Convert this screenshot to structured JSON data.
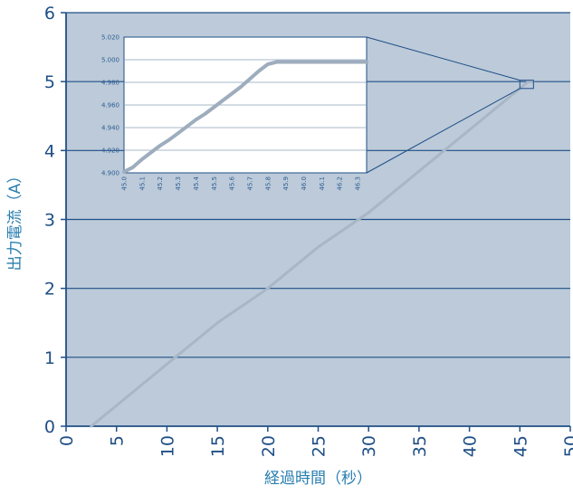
{
  "chart_data": [
    {
      "type": "line",
      "xlabel": "経過時間（秒）",
      "ylabel": "出力電流（A）",
      "xlim": [
        0,
        50
      ],
      "ylim": [
        0,
        6
      ],
      "x_ticks": [
        "0",
        "5",
        "10",
        "15",
        "20",
        "25",
        "30",
        "35",
        "40",
        "45",
        "50"
      ],
      "y_ticks": [
        "0",
        "1",
        "2",
        "3",
        "4",
        "5",
        "6"
      ],
      "grid": "horizontal",
      "series": [
        {
          "x": [
            2.5,
            5,
            10,
            15,
            20,
            25,
            30,
            35,
            40,
            45,
            45.8,
            46.3
          ],
          "y": [
            0.0,
            0.3,
            0.9,
            1.5,
            2.0,
            2.6,
            3.1,
            3.7,
            4.3,
            4.9,
            4.995,
            4.998
          ]
        }
      ]
    },
    {
      "type": "line",
      "role": "inset-zoom",
      "xlim": [
        45.0,
        46.35
      ],
      "ylim": [
        4.9,
        5.02
      ],
      "x_ticks": [
        "45.0",
        "45.1",
        "45.2",
        "45.3",
        "45.4",
        "45.5",
        "45.6",
        "45.7",
        "45.8",
        "45.9",
        "46.0",
        "46.1",
        "46.2",
        "46.3"
      ],
      "y_ticks": [
        "4.900",
        "4.920",
        "4.940",
        "4.960",
        "4.980",
        "5.000",
        "5.020"
      ],
      "grid": "horizontal",
      "series": [
        {
          "x": [
            45.0,
            45.05,
            45.1,
            45.15,
            45.2,
            45.25,
            45.3,
            45.35,
            45.4,
            45.45,
            45.5,
            45.55,
            45.6,
            45.65,
            45.7,
            45.75,
            45.8,
            45.85,
            45.9,
            46.0,
            46.1,
            46.2,
            46.3,
            46.35
          ],
          "y": [
            4.901,
            4.905,
            4.912,
            4.918,
            4.924,
            4.929,
            4.935,
            4.941,
            4.947,
            4.952,
            4.958,
            4.964,
            4.97,
            4.976,
            4.983,
            4.99,
            4.996,
            4.998,
            4.998,
            4.998,
            4.998,
            4.998,
            4.998,
            4.998
          ]
        }
      ]
    }
  ],
  "colors": {
    "plot_bg": "#bccad9",
    "gridline": "#1f4f86",
    "axis": "#1f4f86",
    "tick_text": "#1f4f86",
    "label_text": "#2a7fb0",
    "series": "#a8b6c6",
    "inset_bg": "#ffffff",
    "inset_grid": "#8aa0b8",
    "inset_text": "#2e5f94",
    "inset_series": "#9eadbd"
  }
}
